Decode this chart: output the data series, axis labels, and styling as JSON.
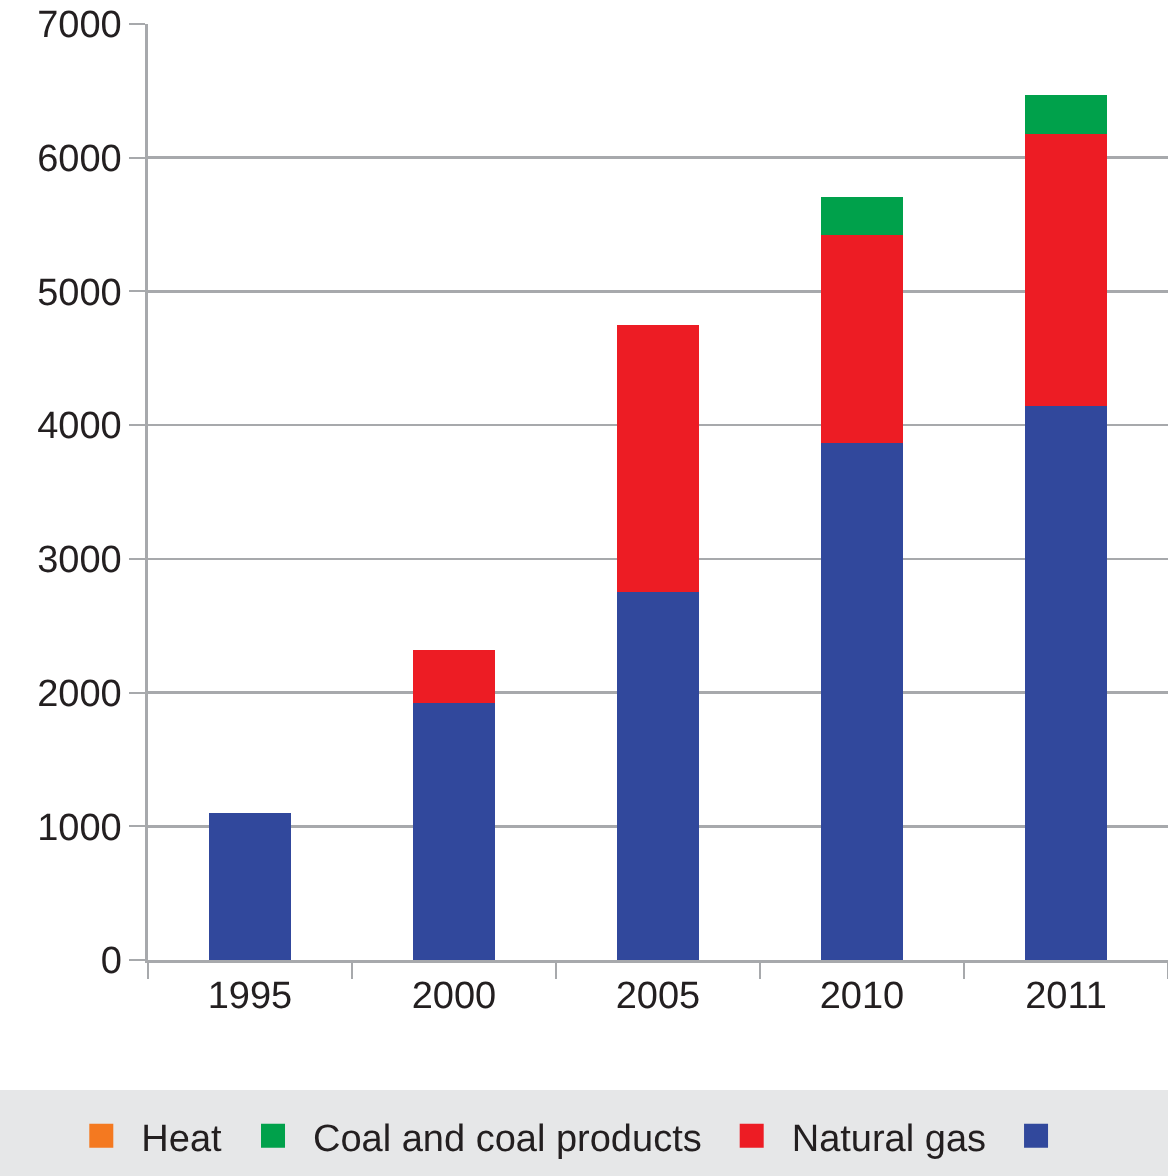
{
  "chart_data": {
    "type": "bar",
    "stacked": true,
    "categories": [
      "1995",
      "2000",
      "2005",
      "2010",
      "2011"
    ],
    "series": [
      {
        "color": "#31489c",
        "values": [
          1100,
          1920,
          2750,
          3870,
          4140
        ]
      },
      {
        "name": "Natural gas",
        "color": "#ed1c24",
        "values": [
          null,
          400,
          2000,
          1550,
          2040
        ]
      },
      {
        "name": "Coal and coal products",
        "color": "#00a14b",
        "values": [
          null,
          null,
          null,
          290,
          290
        ]
      },
      {
        "name": "Heat",
        "color": "#f47920",
        "values": [
          null,
          null,
          null,
          null,
          null
        ]
      }
    ],
    "ylim": [
      0,
      7000
    ],
    "yticks": [
      0,
      1000,
      2000,
      3000,
      4000,
      5000,
      6000,
      7000
    ],
    "grid": "y",
    "legend": "bottom"
  }
}
